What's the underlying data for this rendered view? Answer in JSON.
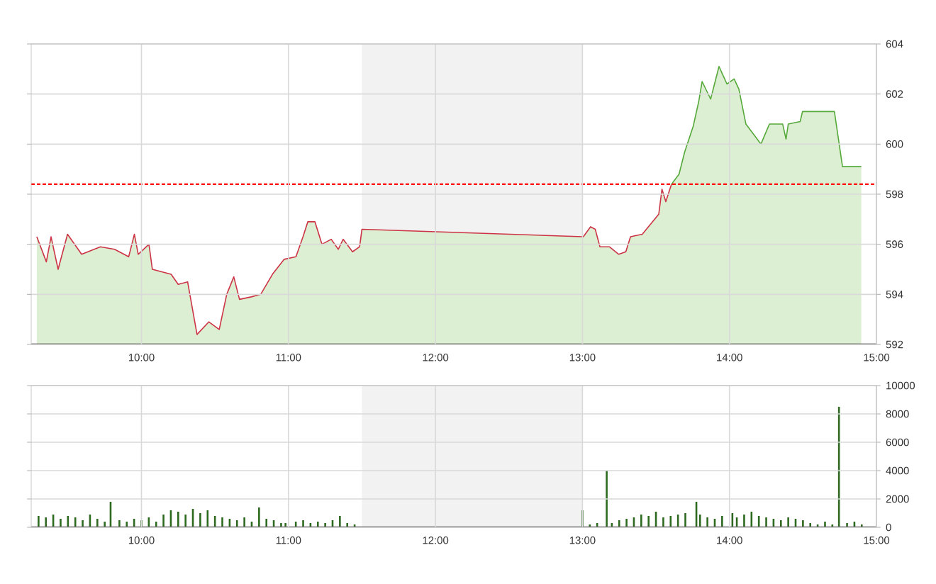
{
  "chart_data": [
    {
      "type": "line",
      "xlim": [
        9.25,
        15
      ],
      "xticks": [
        {
          "value": 10,
          "label": "10:00"
        },
        {
          "value": 11,
          "label": "11:00"
        },
        {
          "value": 12,
          "label": "12:00"
        },
        {
          "value": 13,
          "label": "13:00"
        },
        {
          "value": 14,
          "label": "14:00"
        },
        {
          "value": 15,
          "label": "15:00"
        }
      ],
      "ylim": [
        592,
        604
      ],
      "yticks": [
        592,
        594,
        596,
        598,
        600,
        602,
        604
      ],
      "grid": true,
      "series": [
        {
          "type": "area",
          "color": "#cc3344",
          "x": [
            9.288,
            9.353,
            9.385,
            9.433,
            9.497,
            9.593,
            9.721,
            9.817,
            9.913,
            9.952,
            9.978,
            10.051,
            10.074,
            10.202,
            10.25,
            10.314,
            10.378,
            10.458,
            10.529,
            10.58,
            10.628,
            10.667,
            10.747,
            10.811,
            10.891,
            10.971,
            11.051,
            11.099,
            11.132,
            11.18,
            11.228,
            11.291,
            11.339,
            11.372,
            11.436,
            11.484,
            11.5,
            13.006,
            13.055,
            13.087,
            13.119,
            13.183,
            13.247,
            13.295,
            13.327,
            13.407,
            13.519,
            13.541,
            13.567,
            13.606
          ],
          "values": [
            596.3,
            595.3,
            596.3,
            595.0,
            596.4,
            595.6,
            595.9,
            595.8,
            595.5,
            596.4,
            595.6,
            596.0,
            595.0,
            594.8,
            594.4,
            594.5,
            592.4,
            592.9,
            592.6,
            594.0,
            594.7,
            593.8,
            593.9,
            594.0,
            594.8,
            595.4,
            595.5,
            596.3,
            596.9,
            596.9,
            596.0,
            596.2,
            595.8,
            596.2,
            595.7,
            595.9,
            596.6,
            596.3,
            596.7,
            596.6,
            595.9,
            595.9,
            595.6,
            595.7,
            596.3,
            596.4,
            597.2,
            598.2,
            597.7,
            598.4
          ]
        },
        {
          "type": "area",
          "color": "#55a83a",
          "x": [
            13.606,
            13.657,
            13.696,
            13.753,
            13.791,
            13.814,
            13.872,
            13.929,
            13.983,
            14.032,
            14.064,
            14.112,
            14.214,
            14.272,
            14.362,
            14.385,
            14.4,
            14.481,
            14.497,
            14.714,
            14.769,
            14.897
          ],
          "values": [
            598.4,
            598.8,
            599.7,
            600.7,
            601.7,
            602.5,
            601.8,
            603.1,
            602.4,
            602.6,
            602.2,
            600.8,
            600.0,
            600.8,
            600.8,
            600.2,
            600.8,
            600.9,
            601.3,
            601.3,
            599.1,
            599.1
          ]
        }
      ],
      "ref_lines": [
        {
          "axis": "y",
          "value": 598.4,
          "color": "#ff0000",
          "line_style": "dashed"
        }
      ],
      "bands": [
        {
          "axis": "x",
          "from": 11.5,
          "to": 13,
          "color": "#f2f2f2"
        }
      ]
    },
    {
      "type": "bar",
      "xlim": [
        9.25,
        15
      ],
      "xticks": [
        {
          "value": 10,
          "label": "10:00"
        },
        {
          "value": 11,
          "label": "11:00"
        },
        {
          "value": 12,
          "label": "12:00"
        },
        {
          "value": 13,
          "label": "13:00"
        },
        {
          "value": 14,
          "label": "14:00"
        },
        {
          "value": 15,
          "label": "15:00"
        }
      ],
      "ylim": [
        0,
        10000
      ],
      "yticks": [
        0,
        2000,
        4000,
        6000,
        8000,
        10000
      ],
      "grid": true,
      "color": "#2d6a1f",
      "x": [
        9.3,
        9.35,
        9.4,
        9.45,
        9.5,
        9.55,
        9.6,
        9.65,
        9.7,
        9.75,
        9.79,
        9.85,
        9.9,
        9.95,
        10.0,
        10.05,
        10.1,
        10.15,
        10.2,
        10.25,
        10.3,
        10.35,
        10.4,
        10.45,
        10.5,
        10.55,
        10.6,
        10.65,
        10.7,
        10.75,
        10.8,
        10.85,
        10.9,
        10.95,
        10.98,
        11.05,
        11.1,
        11.15,
        11.2,
        11.25,
        11.3,
        11.35,
        11.4,
        11.45,
        13.0,
        13.05,
        13.1,
        13.165,
        13.2,
        13.25,
        13.3,
        13.35,
        13.4,
        13.45,
        13.5,
        13.55,
        13.6,
        13.65,
        13.7,
        13.775,
        13.8,
        13.85,
        13.9,
        13.95,
        14.02,
        14.05,
        14.1,
        14.15,
        14.2,
        14.25,
        14.3,
        14.35,
        14.4,
        14.45,
        14.5,
        14.55,
        14.6,
        14.65,
        14.7,
        14.745,
        14.8,
        14.85,
        14.9
      ],
      "values": [
        800,
        700,
        900,
        600,
        800,
        700,
        500,
        900,
        600,
        400,
        1800,
        500,
        400,
        600,
        500,
        700,
        400,
        900,
        1200,
        1100,
        900,
        1300,
        1000,
        1200,
        800,
        700,
        600,
        500,
        700,
        400,
        1400,
        600,
        500,
        300,
        300,
        400,
        500,
        300,
        400,
        300,
        500,
        800,
        300,
        200,
        1200,
        200,
        300,
        4000,
        300,
        500,
        600,
        700,
        900,
        800,
        1100,
        700,
        800,
        900,
        1000,
        1800,
        900,
        700,
        600,
        800,
        1000,
        700,
        900,
        1100,
        800,
        700,
        600,
        500,
        700,
        600,
        500,
        300,
        200,
        400,
        200,
        8500,
        300,
        400,
        200
      ],
      "bands": [
        {
          "axis": "x",
          "from": 11.5,
          "to": 13,
          "color": "#f2f2f2"
        }
      ]
    }
  ]
}
